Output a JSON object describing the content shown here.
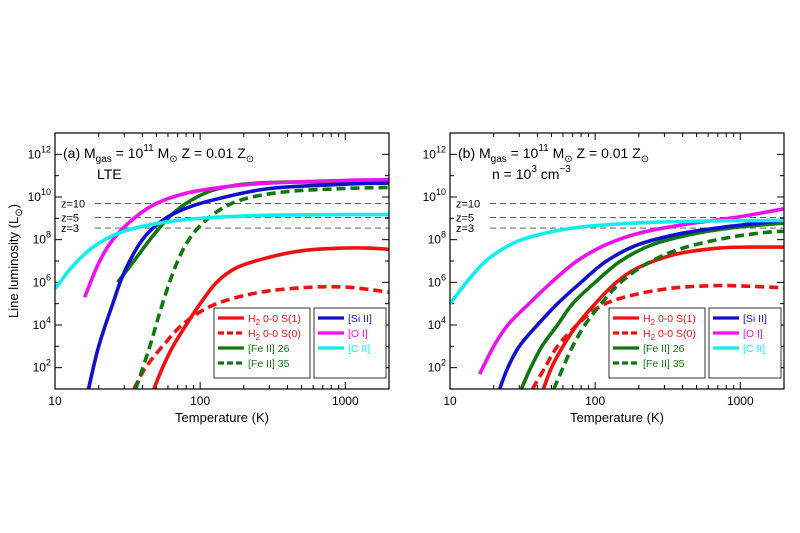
{
  "chart_data": [
    {
      "type": "line",
      "panel_label": "(a)",
      "header": {
        "prefix": "M",
        "prefix_sub": "gas",
        "mass_eq": " = 10",
        "mass_exp": "11",
        "mass_unit": " M",
        "mass_unit_sub": "⊙",
        "metal": "Z = 0.01 Z",
        "metal_sub": "⊙",
        "condition": "LTE",
        "condition_exp": "",
        "condition_tail": ""
      },
      "xlabel": "Temperature (K)",
      "ylabel": "Line luminosity (L",
      "ylabel_sub": "⊙",
      "ylabel_tail": ")",
      "xscale": "log",
      "yscale": "log",
      "xlim": [
        10,
        2000
      ],
      "ylim": [
        10,
        10000000000000.0
      ],
      "x_ticks": [
        {
          "value": 10,
          "label": "10"
        },
        {
          "value": 100,
          "label": "100"
        },
        {
          "value": 1000,
          "label": "1000"
        }
      ],
      "y_ticks": [
        {
          "value": 100,
          "base": "10",
          "exp": "2"
        },
        {
          "value": 10000,
          "base": "10",
          "exp": "4"
        },
        {
          "value": 1000000,
          "base": "10",
          "exp": "6"
        },
        {
          "value": 100000000,
          "base": "10",
          "exp": "8"
        },
        {
          "value": 10000000000,
          "base": "10",
          "exp": "10"
        },
        {
          "value": 1000000000000,
          "base": "10",
          "exp": "12"
        }
      ],
      "reference_lines": [
        {
          "label": "z=10",
          "y": 5000000000.0
        },
        {
          "label": "z=5",
          "y": 1100000000.0
        },
        {
          "label": "z=3",
          "y": 350000000.0
        }
      ],
      "series": [
        {
          "key": "h2s1",
          "color": "#ee1111",
          "dash": "solid",
          "points": [
            [
              48,
              10
            ],
            [
              55,
              100
            ],
            [
              65,
              1000
            ],
            [
              80,
              10000
            ],
            [
              100,
              100000
            ],
            [
              130,
              1000000
            ],
            [
              180,
              5000000
            ],
            [
              300,
              15000000
            ],
            [
              500,
              30000000
            ],
            [
              900,
              40000000
            ],
            [
              1500,
              40000000
            ],
            [
              2000,
              35000000
            ]
          ]
        },
        {
          "key": "h2s0",
          "color": "#ee1111",
          "dash": "dashed",
          "points": [
            [
              35,
              10
            ],
            [
              42,
              100
            ],
            [
              55,
              1000
            ],
            [
              75,
              10000
            ],
            [
              110,
              60000
            ],
            [
              170,
              180000
            ],
            [
              300,
              400000
            ],
            [
              600,
              600000
            ],
            [
              1000,
              600000
            ],
            [
              1500,
              450000
            ],
            [
              2000,
              350000
            ]
          ]
        },
        {
          "key": "fe26",
          "color": "#117711",
          "dash": "solid",
          "points": [
            [
              27,
              1000000
            ],
            [
              35,
              10000000
            ],
            [
              45,
              100000000
            ],
            [
              60,
              1000000000
            ],
            [
              80,
              5000000000
            ],
            [
              120,
              20000000000
            ],
            [
              200,
              40000000000
            ],
            [
              400,
              50000000000
            ],
            [
              1000,
              50000000000
            ],
            [
              2000,
              50000000000
            ]
          ]
        },
        {
          "key": "fe35",
          "color": "#117711",
          "dash": "dashed",
          "points": [
            [
              36,
              10
            ],
            [
              45,
              1000
            ],
            [
              55,
              100000
            ],
            [
              70,
              10000000
            ],
            [
              90,
              200000000
            ],
            [
              130,
              2000000000
            ],
            [
              200,
              8000000000
            ],
            [
              400,
              18000000000
            ],
            [
              1000,
              25000000000
            ],
            [
              2000,
              28000000000
            ]
          ]
        },
        {
          "key": "si2",
          "color": "#1111cc",
          "dash": "solid",
          "points": [
            [
              17,
              10
            ],
            [
              20,
              1000
            ],
            [
              25,
              100000
            ],
            [
              30,
              3000000
            ],
            [
              40,
              100000000
            ],
            [
              55,
              800000000
            ],
            [
              80,
              3000000000
            ],
            [
              130,
              8000000000
            ],
            [
              300,
              25000000000
            ],
            [
              1000,
              40000000000
            ],
            [
              2000,
              45000000000
            ]
          ]
        },
        {
          "key": "o1",
          "color": "#ee11ee",
          "dash": "solid",
          "points": [
            [
              16,
              200000
            ],
            [
              20,
              8000000
            ],
            [
              25,
              100000000
            ],
            [
              35,
              1000000000
            ],
            [
              50,
              5000000000
            ],
            [
              80,
              15000000000
            ],
            [
              150,
              30000000000
            ],
            [
              300,
              45000000000
            ],
            [
              1000,
              60000000000
            ],
            [
              2000,
              65000000000
            ]
          ]
        },
        {
          "key": "c2",
          "color": "#11eeee",
          "dash": "solid",
          "points": [
            [
              10,
              500000
            ],
            [
              13,
              5000000
            ],
            [
              17,
              30000000
            ],
            [
              22,
              100000000
            ],
            [
              30,
              250000000
            ],
            [
              45,
              500000000
            ],
            [
              70,
              800000000
            ],
            [
              120,
              1100000000
            ],
            [
              300,
              1400000000
            ],
            [
              1000,
              1500000000
            ],
            [
              2000,
              1500000000
            ]
          ]
        }
      ],
      "legend": {
        "left": [
          {
            "key": "h2s1",
            "text": "H",
            "sub": "2",
            "tail": " 0-0 S(1)"
          },
          {
            "key": "h2s0",
            "text": "H",
            "sub": "2",
            "tail": " 0-0 S(0)"
          },
          {
            "key": "fe26",
            "text": "[Fe II] 26",
            "sub": "",
            "tail": ""
          },
          {
            "key": "fe35",
            "text": "[Fe II] 35",
            "sub": "",
            "tail": ""
          }
        ],
        "right": [
          {
            "key": "si2",
            "text": "[Si II]",
            "sub": "",
            "tail": ""
          },
          {
            "key": "o1",
            "text": "[O I]",
            "sub": "",
            "tail": ""
          },
          {
            "key": "c2",
            "text": "[C II]",
            "sub": "",
            "tail": ""
          }
        ]
      }
    },
    {
      "type": "line",
      "panel_label": "(b)",
      "header": {
        "prefix": "M",
        "prefix_sub": "gas",
        "mass_eq": " = 10",
        "mass_exp": "11",
        "mass_unit": " M",
        "mass_unit_sub": "⊙",
        "metal": "Z = 0.01 Z",
        "metal_sub": "⊙",
        "condition": "n = 10",
        "condition_exp": "3",
        "condition_tail": " cm",
        "condition_tail_exp": "−3"
      },
      "xlabel": "Temperature (K)",
      "ylabel": "",
      "xscale": "log",
      "yscale": "log",
      "xlim": [
        10,
        2000
      ],
      "ylim": [
        10,
        10000000000000.0
      ],
      "x_ticks": [
        {
          "value": 10,
          "label": "10"
        },
        {
          "value": 100,
          "label": "100"
        },
        {
          "value": 1000,
          "label": "1000"
        }
      ],
      "y_ticks": [
        {
          "value": 100,
          "base": "10",
          "exp": "2"
        },
        {
          "value": 10000,
          "base": "10",
          "exp": "4"
        },
        {
          "value": 1000000,
          "base": "10",
          "exp": "6"
        },
        {
          "value": 100000000,
          "base": "10",
          "exp": "8"
        },
        {
          "value": 10000000000,
          "base": "10",
          "exp": "10"
        },
        {
          "value": 1000000000000,
          "base": "10",
          "exp": "12"
        }
      ],
      "reference_lines": [
        {
          "label": "z=10",
          "y": 5000000000.0
        },
        {
          "label": "z=5",
          "y": 1100000000.0
        },
        {
          "label": "z=3",
          "y": 350000000.0
        }
      ],
      "series": [
        {
          "key": "h2s1",
          "color": "#ee1111",
          "dash": "solid",
          "points": [
            [
              44,
              10
            ],
            [
              50,
              100
            ],
            [
              60,
              1000
            ],
            [
              75,
              10000
            ],
            [
              100,
              100000
            ],
            [
              140,
              1000000
            ],
            [
              200,
              5000000
            ],
            [
              350,
              20000000
            ],
            [
              700,
              40000000
            ],
            [
              1200,
              45000000
            ],
            [
              2000,
              45000000
            ]
          ]
        },
        {
          "key": "h2s0",
          "color": "#ee1111",
          "dash": "dashed",
          "points": [
            [
              37,
              10
            ],
            [
              45,
              100
            ],
            [
              55,
              1000
            ],
            [
              75,
              10000
            ],
            [
              110,
              80000
            ],
            [
              180,
              250000
            ],
            [
              350,
              550000
            ],
            [
              700,
              700000
            ],
            [
              1200,
              650000
            ],
            [
              2000,
              550000
            ]
          ]
        },
        {
          "key": "fe26",
          "color": "#117711",
          "dash": "solid",
          "points": [
            [
              31,
              10
            ],
            [
              36,
              100
            ],
            [
              43,
              1000
            ],
            [
              55,
              10000
            ],
            [
              70,
              100000
            ],
            [
              100,
              1000000
            ],
            [
              150,
              10000000
            ],
            [
              250,
              60000000
            ],
            [
              500,
              200000000
            ],
            [
              1000,
              400000000
            ],
            [
              2000,
              600000000
            ]
          ]
        },
        {
          "key": "fe35",
          "color": "#117711",
          "dash": "dashed",
          "points": [
            [
              52,
              10
            ],
            [
              60,
              100
            ],
            [
              70,
              1000
            ],
            [
              85,
              10000
            ],
            [
              110,
              100000
            ],
            [
              150,
              1000000
            ],
            [
              230,
              8000000
            ],
            [
              400,
              40000000
            ],
            [
              800,
              120000000
            ],
            [
              1500,
              220000000
            ],
            [
              2000,
              250000000
            ]
          ]
        },
        {
          "key": "si2",
          "color": "#1111cc",
          "dash": "solid",
          "points": [
            [
              22,
              10
            ],
            [
              25,
              100
            ],
            [
              30,
              1000
            ],
            [
              40,
              10000
            ],
            [
              55,
              100000
            ],
            [
              80,
              1000000
            ],
            [
              120,
              10000000
            ],
            [
              200,
              60000000
            ],
            [
              400,
              200000000
            ],
            [
              800,
              400000000
            ],
            [
              2000,
              800000000
            ]
          ]
        },
        {
          "key": "o1",
          "color": "#ee11ee",
          "dash": "solid",
          "points": [
            [
              16,
              50
            ],
            [
              20,
              1000
            ],
            [
              25,
              10000
            ],
            [
              35,
              100000
            ],
            [
              50,
              1000000
            ],
            [
              75,
              10000000
            ],
            [
              120,
              60000000
            ],
            [
              200,
              200000000
            ],
            [
              400,
              500000000
            ],
            [
              1000,
              1200000000
            ],
            [
              2000,
              2800000000
            ]
          ]
        },
        {
          "key": "c2",
          "color": "#11eeee",
          "dash": "solid",
          "points": [
            [
              10,
              100000
            ],
            [
              13,
              1000000
            ],
            [
              17,
              8000000
            ],
            [
              22,
              30000000
            ],
            [
              30,
              90000000
            ],
            [
              45,
              200000000
            ],
            [
              70,
              350000000
            ],
            [
              120,
              500000000
            ],
            [
              250,
              650000000
            ],
            [
              600,
              750000000
            ],
            [
              2000,
              800000000
            ]
          ]
        }
      ],
      "legend": {
        "left": [
          {
            "key": "h2s1",
            "text": "H",
            "sub": "2",
            "tail": " 0-0 S(1)"
          },
          {
            "key": "h2s0",
            "text": "H",
            "sub": "2",
            "tail": " 0-0 S(0)"
          },
          {
            "key": "fe26",
            "text": "[Fe II] 26",
            "sub": "",
            "tail": ""
          },
          {
            "key": "fe35",
            "text": "[Fe II] 35",
            "sub": "",
            "tail": ""
          }
        ],
        "right": [
          {
            "key": "si2",
            "text": "[Si II]",
            "sub": "",
            "tail": ""
          },
          {
            "key": "o1",
            "text": "[O I]",
            "sub": "",
            "tail": ""
          },
          {
            "key": "c2",
            "text": "[C II]",
            "sub": "",
            "tail": ""
          }
        ]
      }
    }
  ]
}
